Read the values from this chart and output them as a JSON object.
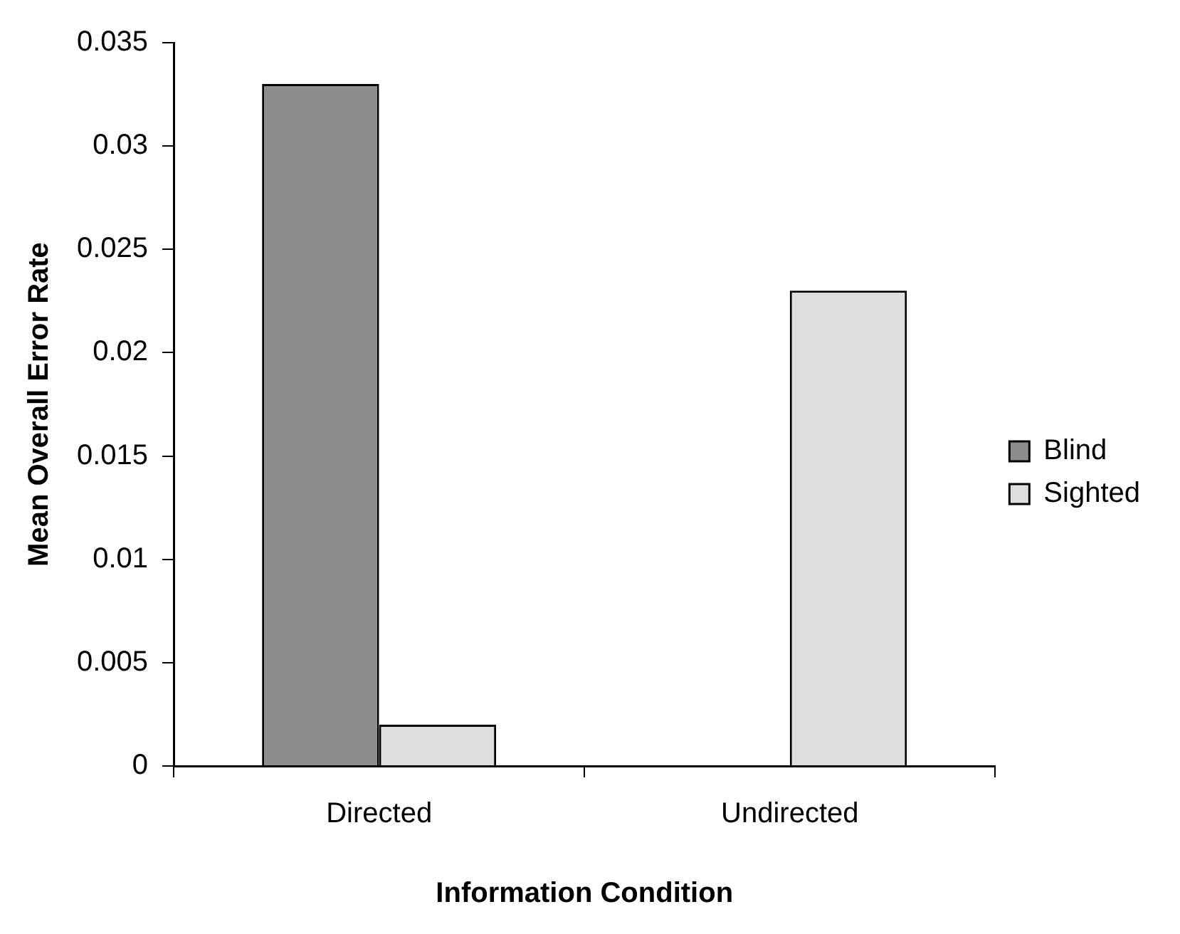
{
  "chart_data": {
    "type": "bar",
    "xlabel": "Information Condition",
    "ylabel": "Mean Overall Error Rate",
    "categories": [
      "Directed",
      "Undirected"
    ],
    "series": [
      {
        "name": "Blind",
        "color": "#8c8c8c",
        "values": [
          0.033,
          0
        ]
      },
      {
        "name": "Sighted",
        "color": "#dedede",
        "values": [
          0.002,
          0.023
        ]
      }
    ],
    "ylim": [
      0,
      0.035
    ],
    "yticks": [
      0,
      0.005,
      0.01,
      0.015,
      0.02,
      0.025,
      0.03,
      0.035
    ],
    "grid": false,
    "legend": "right"
  }
}
